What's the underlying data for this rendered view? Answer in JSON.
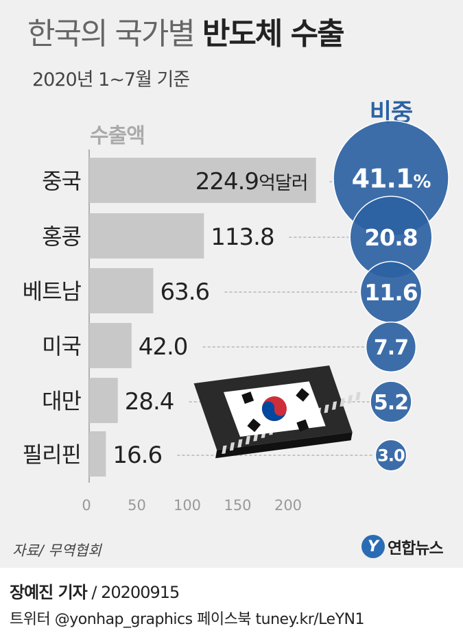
{
  "title": {
    "light": "한국의 국가별 ",
    "bold": "반도체 수출"
  },
  "subtitle": "2020년 1~7월 기준",
  "chart_data": {
    "type": "bar",
    "orientation": "horizontal",
    "categories": [
      "중국",
      "홍콩",
      "베트남",
      "미국",
      "대만",
      "필리핀"
    ],
    "series": [
      {
        "name": "수출액",
        "values": [
          224.9,
          113.8,
          63.6,
          42.0,
          28.4,
          16.6
        ],
        "unit": "억달러"
      },
      {
        "name": "비중",
        "values": [
          41.1,
          20.8,
          11.6,
          7.7,
          5.2,
          3.0
        ],
        "unit": "%"
      }
    ],
    "value_labels": [
      "224.9",
      "113.8",
      "63.6",
      "42.0",
      "28.4",
      "16.6"
    ],
    "share_labels": [
      "41.1",
      "20.8",
      "11.6",
      "7.7",
      "5.2",
      "3.0"
    ],
    "first_value_unit": "억달러",
    "first_share_unit": "%",
    "xlim": [
      0,
      230
    ],
    "x_ticks": [
      "0",
      "50",
      "100",
      "150",
      "200"
    ],
    "x_tick_values": [
      0,
      50,
      100,
      150,
      200
    ],
    "bar_column_label": "수출액",
    "share_column_label": "비중",
    "colors": {
      "bar": "#c8c8c8",
      "bubble": "#2d62a3",
      "bubble_border": "#ffffff",
      "share_label": "#2d62a3",
      "dash": "#b5b5b5"
    }
  },
  "source": "자료/ 무역협회",
  "logo": {
    "mark": "Y",
    "text": "연합뉴스"
  },
  "credit": {
    "reporter": "장예진 기자",
    "date": " / 20200915"
  },
  "social": "트위터 @yonhap_graphics  페이스북 tuney.kr/LeYN1"
}
